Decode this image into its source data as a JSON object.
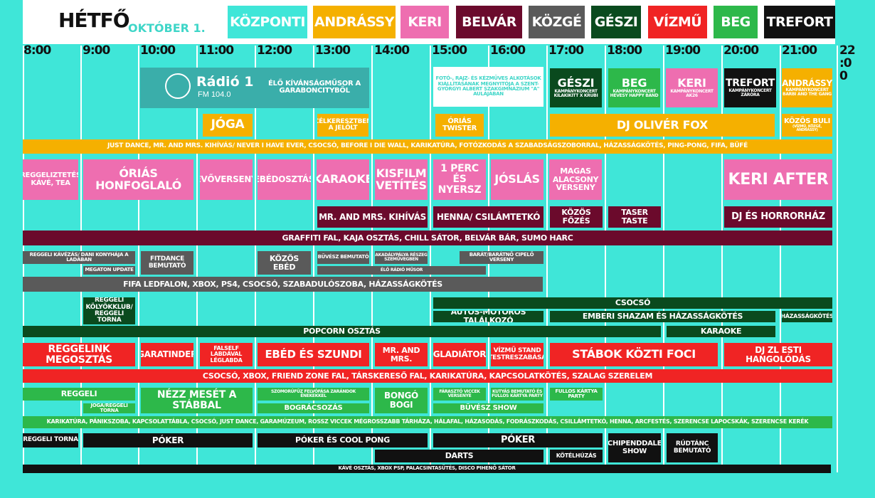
{
  "header": {
    "day": "HÉTFŐ",
    "date": "OKTÓBER 1.",
    "tabs": [
      {
        "label": "KÖZPONTI",
        "color": "#3fe6d8"
      },
      {
        "label": "ANDRÁSSY",
        "color": "#f5b000"
      },
      {
        "label": "KERI",
        "color": "#ee6eb0"
      },
      {
        "label": "BELVÁR",
        "color": "#6b0a2c"
      },
      {
        "label": "KÖZGÉ",
        "color": "#5a5a5a"
      },
      {
        "label": "GÉSZI",
        "color": "#0a4a1e"
      },
      {
        "label": "VÍZMŰ",
        "color": "#f02424"
      },
      {
        "label": "BEG",
        "color": "#2db84a"
      },
      {
        "label": "TREFORT",
        "color": "#111111"
      }
    ]
  },
  "hours": [
    "8:00",
    "9:00",
    "10:00",
    "11:00",
    "12:00",
    "13:00",
    "14:00",
    "15:00",
    "16:00",
    "17:00",
    "18:00",
    "19:00",
    "20:00",
    "21:00",
    "22:00"
  ],
  "radio": {
    "name": "Rádió 1",
    "freq": "FM 104.0",
    "logo_text": "RÁDIÓ 1",
    "program": "ÉLŐ KÍVÁNSÁGMŰSOR A GARABONCITYBŐL"
  },
  "events": {
    "exhibition": "FOTÓ-, RAJZ- ÉS KÉZMŰVES ALKOTÁSOK KIÁLLÍTÁSÁNAK MEGNYITÓJA A SZENT-GYÖRGYI ALBERT SZAKGIMNÁZIUM \"A\" AULÁJÁBAN",
    "geszi_concert": {
      "title": "GÉSZI",
      "sub": "KAMPÁNYKONCERT KILAKIKITT X KRUBI"
    },
    "beg_concert": {
      "title": "BEG",
      "sub": "KAMPÁNYKONCERT HEVESY HAPPY BAND"
    },
    "keri_concert": {
      "title": "KERI",
      "sub": "KAMPÁNYKONCERT AK26"
    },
    "trefort_concert": {
      "title": "TREFORT",
      "sub": "KAMPÁNYKONCERT ZÁRÓRA"
    },
    "andrassy_concert": {
      "title": "ANDRÁSSY",
      "sub": "KAMPÁNYKONCERT BARBI AND THE GANG"
    },
    "joga": "JÓGA",
    "celkeresztben": "CÉLKERESZTBEN A JELÖLT",
    "orias_twister": "ÓRIÁS TWISTER",
    "dj_oliver": "DJ OLIVÉR FOX",
    "kozos_buli": {
      "title": "KÖZÖS BULI",
      "sub": "(VÍZMŰ, KÖZGÉ, ANDRÁSSY)"
    },
    "andrassy_bar": "JUST DANCE, MR. AND MRS. KIHÍVÁS/ NEVER I HAVE EVER, CSOCSÓ, BEFORE I DIE WALL, KARIKATÚRA, FOTÓZKODÁS A SZABADSÁGSZOBORRAL, HÁZASSÁGKÖTÉS, PING-PONG, FIFA, BÜFÉ",
    "keri": [
      "REGGELIZTETÉS KÁVÉ, TEA",
      "ÓRIÁS HONFOGLALÓ",
      "EVŐVERSENY",
      "EBÉDOSZTÁS",
      "KARAOKE",
      "KISFILM VETÍTÉS",
      "1 PERC ÉS NYERSZ",
      "JÓSLÁS",
      "MAGAS ALACSONY VERSENY",
      "KERI AFTER"
    ],
    "belvar": [
      "MR. AND MRS. KIHÍVÁS",
      "HENNA/ CSILÁMTETKÓ",
      "KÖZÖS FŐZÉS",
      "TASER TASTE",
      "DJ ÉS HORRORHÁZ"
    ],
    "belvar_bar": "GRAFFITI FAL, KAJA OSZTÁS, CHILL SÁTOR, BELVÁR BÁR, SUMO HARC",
    "kozge": {
      "reggeli_kavezas": "REGGELI KÁVÉZÁS/ DANI KONYHÁJA A LADÁBAN",
      "megaton": "MEGATON UPDATE",
      "fitdance": "FITDANCE BEMUTATÓ",
      "kozos_ebed": "KÖZÖS EBÉD",
      "buvesz": "BŰVÉSZ BEMUTATÓ",
      "akadaly": "AKADÁLYPÁLYA RÉSZEG SZEMÜVEGBEN",
      "elo_radio": "ÉLŐ RÁDIÓ MŰSOR",
      "barat": "BARÁT/BARÁTNŐ CIPELŐ VERSENY",
      "bar": "FIFA LEDFALON, XBOX, PS4, CSOCSÓ, SZABADULÓSZOBA, HÁZASSÁGKÖTÉS"
    },
    "geszi": {
      "kolyokklub": "REGGELI KÖLYÖKKLUB/ REGGELI TORNA",
      "csocso": "CSOCSÓ",
      "autos": "AUTÓS-MOTOROS TALÁLKOZÓ",
      "shazam": "EMBERI SHAZAM ÉS HÁZASSÁGKÖTÉS",
      "hazassag": "HÁZASSÁGKÖTÉS",
      "popcorn": "POPCORN OSZTÁS",
      "karaoke": "KARAOKE"
    },
    "vizmu": [
      "REGGELINK MEGOSZTÁS",
      "GARATINDER",
      "FALSELF LABDÁVAL LÉGLABDA",
      "EBÉD ÉS SZUNDI",
      "MR. AND MRS.",
      "GLADIÁTOR",
      "VÍZMŰ STAND TESTRESZABÁSA",
      "STÁBOK KÖZTI FOCI",
      "DJ ZL ESTI HANGOLÓDÁS"
    ],
    "vizmu_bar": "CSOCSÓ, XBOX, FRIEND ZONE FAL, TÁRSKERESŐ FAL, KARIKATÚRA, KAPCSOLATKÖTÉS, SZALAG SZERELEM",
    "beg": {
      "reggeli": "REGGELI",
      "joga_torna": "JÓGA/REGGELI TORNA",
      "nezz_mesét": "NÉZZ MESÉT A STÁBBAL",
      "szomorufuz": "SZOMORÚFŰZ FELVÓFÁSA ZARÁNDOK ÉNEKEKKEL",
      "bogracsozas": "BOGRÁCSOZÁS",
      "bongo": "BONGÓ BOGI",
      "faraszto": "FÁRASZTÓ VICCEK VERSENYE",
      "kutyas": "KUTYÁS BEMUTATÓ ÉS FULLOS KÁRTYA PARTY",
      "fullos": "FULLOS KÁRTYA PARTY",
      "buvesz_show": "BŰVÉSZ SHOW",
      "bar": "KARIKATÚRA, PÁNIKSZOBA, KAPCSOLATTÁBLA, CSOCSÓ, JUST DANCE, GARAMÚZEUM, ROSSZ VICCEK MÉGROSSZABB TÁRHÁZA, HÁLAFAL, HÁZASODÁS, FODRÁSZKODÁS, CSILLÁMTETKÓ, HENNA, ARCFESTÉS, SZERENCSE LAPOCSKÁK, SZERENCSE KERÉK"
    },
    "trefort": {
      "reggeli_torna": "REGGELI TORNA",
      "poker1": "PÓKER",
      "poker_cool": "PÓKER ÉS COOL PONG",
      "poker2": "PÓKER",
      "chipenddale": "CHIPENDDALE SHOW",
      "rudtanc": "RÚDTÁNC BEMUTATÓ",
      "darts": "DARTS",
      "kotelhuzas": "KÖTÉLHÚZÁS",
      "bar": "KÁVÉ OSZTÁS, XBOX PSP, PALACSINTASÜTÉS, DISCO PIHENŐ SÁTOR"
    }
  }
}
